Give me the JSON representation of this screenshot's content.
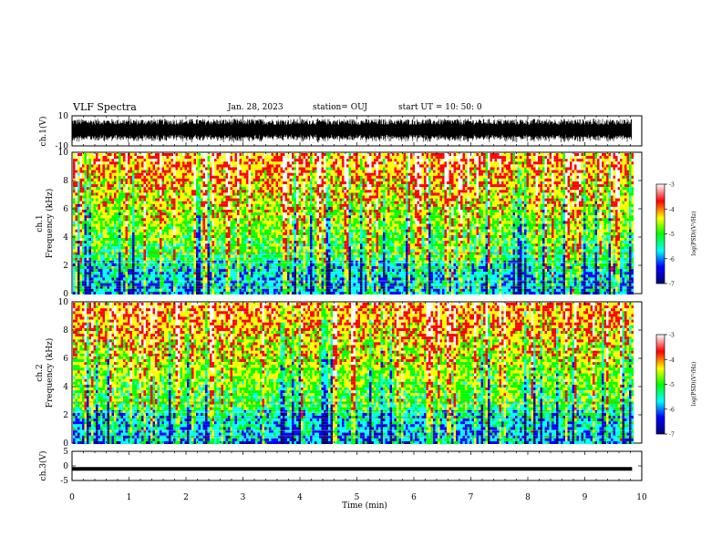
{
  "header": {
    "title": "VLF Spectra",
    "date": "Jan. 28, 2023",
    "station": "station= OUJ",
    "start": "start  UT =    10: 50: 0"
  },
  "colors": {
    "background": "#ffffff",
    "axes": "#000000",
    "colormap": [
      "#00007a",
      "#0000ff",
      "#00ffff",
      "#00ff00",
      "#ffff00",
      "#ff0000",
      "#ffffff"
    ]
  },
  "chart_data": [
    {
      "type": "line",
      "panel": "ch1-waveform",
      "ylabel": "ch.1(V)",
      "ylim": [
        -10,
        10
      ],
      "yticks": [
        "10",
        "-10"
      ],
      "description_values": {
        "envelope_max": 8,
        "envelope_min": -8
      },
      "xlim": [
        0,
        10
      ]
    },
    {
      "type": "heatmap",
      "panel": "ch1-spectrogram",
      "ylabel1": "ch.1",
      "ylabel2": "Frequency  (kHz)",
      "ylim": [
        0,
        10
      ],
      "yticks": [
        "0",
        "2",
        "4",
        "6",
        "8",
        "10"
      ],
      "xlim": [
        0,
        9.83
      ],
      "colorbar": {
        "label": "log(PSD)(V²/Hz)",
        "range": [
          -7,
          -3
        ],
        "ticks": [
          "-3",
          "-4",
          "-5",
          "-6",
          "-7"
        ]
      }
    },
    {
      "type": "heatmap",
      "panel": "ch2-spectrogram",
      "ylabel1": "ch.2",
      "ylabel2": "Frequency  (kHz)",
      "ylim": [
        0,
        10
      ],
      "yticks": [
        "0",
        "2",
        "4",
        "6",
        "8",
        "10"
      ],
      "xlim": [
        0,
        9.83
      ],
      "colorbar": {
        "label": "log(PSD)(V²/Hz)",
        "range": [
          -7,
          -3
        ],
        "ticks": [
          "-3",
          "-4",
          "-5",
          "-6",
          "-7"
        ]
      }
    },
    {
      "type": "line",
      "panel": "ch3-waveform",
      "ylabel": "ch.3(V)",
      "ylim": [
        -5,
        5
      ],
      "yticks": [
        "5",
        "0",
        "-5"
      ],
      "x": [
        0,
        9.83
      ],
      "values": [
        -1,
        -1
      ]
    }
  ],
  "xaxis": {
    "label": "Time  (min)",
    "ticks": [
      "0",
      "1",
      "2",
      "3",
      "4",
      "5",
      "6",
      "7",
      "8",
      "9",
      "10"
    ],
    "range": [
      0,
      10
    ]
  }
}
